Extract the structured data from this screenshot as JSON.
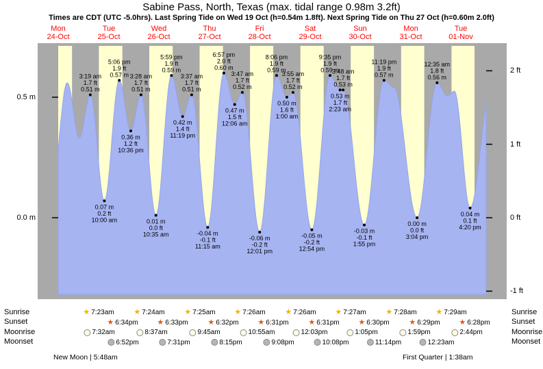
{
  "title": "Sabine Pass, North, Texas (max. tidal range 0.98m 3.2ft)",
  "subtitle": "Times are CDT (UTC -5.0hrs). Last Spring Tide on Wed 19 Oct (h=0.54m 1.8ft). Next Spring Tide on Thu 27 Oct (h=0.60m 2.0ft)",
  "colors": {
    "day_band": "#ffffcf",
    "night": "#a9a9a9",
    "tide_fill": "#a7b4f2",
    "tide_edge": "#93a5ee",
    "day_label": "#ff0000",
    "sunrise_icon": "#f0b400",
    "sunset_icon": "#e0581c",
    "moonrise_icon": "#fffbe0",
    "moonset_icon": "#b5b5b5",
    "text": "#000000"
  },
  "days": [
    {
      "name": "Mon",
      "date": "24-Oct"
    },
    {
      "name": "Tue",
      "date": "25-Oct"
    },
    {
      "name": "Wed",
      "date": "26-Oct"
    },
    {
      "name": "Thu",
      "date": "27-Oct"
    },
    {
      "name": "Fri",
      "date": "28-Oct"
    },
    {
      "name": "Sat",
      "date": "29-Oct"
    },
    {
      "name": "Sun",
      "date": "30-Oct"
    },
    {
      "name": "Mon",
      "date": "31-Oct"
    },
    {
      "name": "Tue",
      "date": "01-Nov"
    }
  ],
  "axis": {
    "left": [
      {
        "label": "0.5 m",
        "m": 0.5
      },
      {
        "label": "0.0 m",
        "m": 0
      }
    ],
    "right": [
      {
        "label": "2 ft",
        "m": 0.6096
      },
      {
        "label": "1 ft",
        "m": 0.3048
      },
      {
        "label": "0 ft",
        "m": 0
      },
      {
        "label": "-1 ft",
        "m": -0.3048
      }
    ]
  },
  "chart_data": {
    "type": "area",
    "series_name": "tide height",
    "x_range": "Mon 24-Oct midday to Wed 02-Nov 00:00",
    "ylim_m": [
      -0.32,
      0.71
    ],
    "grid": false,
    "start_day_sunset_est": "6:35 pm",
    "extremes": [
      {
        "day": 0,
        "time": "8:55 am",
        "type": "low",
        "m": "0.12",
        "labeled": false,
        "est": true
      },
      {
        "day": 0,
        "time": "4:18 pm",
        "type": "high",
        "m": "0.56",
        "labeled": false,
        "est": true
      },
      {
        "day": 0,
        "time": "10:05 pm",
        "type": "low",
        "m": "0.33",
        "labeled": false,
        "est": true
      },
      {
        "day": 1,
        "time": "3:19 am",
        "type": "high",
        "m": "0.51",
        "ft": "1.7",
        "labeled": true
      },
      {
        "day": 1,
        "time": "10:00 am",
        "type": "low",
        "m": "0.07",
        "ft": "0.2",
        "labeled": true
      },
      {
        "day": 1,
        "time": "5:06 pm",
        "type": "high",
        "m": "0.57",
        "ft": "1.9",
        "labeled": true
      },
      {
        "day": 1,
        "time": "10:36 pm",
        "type": "low",
        "m": "0.36",
        "ft": "1.2",
        "labeled": true
      },
      {
        "day": 2,
        "time": "3:28 am",
        "type": "high",
        "m": "0.51",
        "ft": "1.7",
        "labeled": true
      },
      {
        "day": 2,
        "time": "10:35 am",
        "type": "low",
        "m": "0.01",
        "ft": "0.0",
        "labeled": true
      },
      {
        "day": 2,
        "time": "5:59 pm",
        "type": "high",
        "m": "0.59",
        "ft": "1.9",
        "labeled": true
      },
      {
        "day": 2,
        "time": "11:19 pm",
        "type": "low",
        "m": "0.42",
        "ft": "1.4",
        "labeled": true
      },
      {
        "day": 3,
        "time": "3:37 am",
        "type": "high",
        "m": "0.51",
        "ft": "1.7",
        "labeled": true
      },
      {
        "day": 3,
        "time": "11:15 am",
        "type": "low",
        "m": "-0.04",
        "ft": "-0.1",
        "labeled": true
      },
      {
        "day": 3,
        "time": "6:57 pm",
        "type": "high",
        "m": "0.60",
        "ft": "2.0",
        "labeled": true
      },
      {
        "day": 4,
        "time": "12:06 am",
        "type": "low",
        "m": "0.47",
        "ft": "1.5",
        "labeled": true
      },
      {
        "day": 4,
        "time": "3:47 am",
        "type": "high",
        "m": "0.52",
        "ft": "1.7",
        "labeled": true
      },
      {
        "day": 4,
        "time": "12:01 pm",
        "type": "low",
        "m": "-0.06",
        "ft": "-0.2",
        "labeled": true
      },
      {
        "day": 4,
        "time": "8:06 pm",
        "type": "high",
        "m": "0.59",
        "ft": "1.9",
        "labeled": true
      },
      {
        "day": 5,
        "time": "1:00 am",
        "type": "low",
        "m": "0.50",
        "ft": "1.6",
        "labeled": true
      },
      {
        "day": 5,
        "time": "3:55 am",
        "type": "high",
        "m": "0.52",
        "ft": "1.7",
        "labeled": true
      },
      {
        "day": 5,
        "time": "12:54 pm",
        "type": "low",
        "m": "-0.05",
        "ft": "-0.2",
        "labeled": true
      },
      {
        "day": 5,
        "time": "9:35 pm",
        "type": "high",
        "m": "0.59",
        "ft": "1.9",
        "labeled": true
      },
      {
        "day": 6,
        "time": "2:23 am",
        "type": "low",
        "m": "0.53",
        "ft": "1.7",
        "labeled": true
      },
      {
        "day": 6,
        "time": "3:48 am",
        "type": "high",
        "m": "0.53",
        "ft": "1.7",
        "labeled": true
      },
      {
        "day": 6,
        "time": "1:55 pm",
        "type": "low",
        "m": "-0.03",
        "ft": "-0.1",
        "labeled": true
      },
      {
        "day": 6,
        "time": "11:19 pm",
        "type": "high",
        "m": "0.57",
        "ft": "1.9",
        "labeled": true
      },
      {
        "day": 7,
        "time": "4:00 am",
        "type": "high",
        "m": "0.54",
        "labeled": false,
        "est": true
      },
      {
        "day": 7,
        "time": "3:04 pm",
        "type": "low",
        "m": "0.00",
        "ft": "0.0",
        "labeled": true
      },
      {
        "day": 8,
        "time": "12:35 am",
        "type": "high",
        "m": "0.56",
        "ft": "1.8",
        "labeled": true
      },
      {
        "day": 8,
        "time": "5:30 am",
        "type": "low",
        "m": "0.505",
        "labeled": false,
        "est": true
      },
      {
        "day": 8,
        "time": "8:50 am",
        "type": "high",
        "m": "0.525",
        "labeled": false,
        "est": true
      },
      {
        "day": 8,
        "time": "4:20 pm",
        "type": "low",
        "m": "0.04",
        "ft": "0.1",
        "labeled": true
      },
      {
        "day": 9,
        "time": "2:30 am",
        "type": "high",
        "m": "0.55",
        "labeled": false,
        "est": true
      }
    ]
  },
  "astro": {
    "row_labels": [
      "Sunrise",
      "Sunset",
      "Moonrise",
      "Moonset"
    ],
    "sunrise": [
      {
        "day": 1,
        "time": "7:23am"
      },
      {
        "day": 2,
        "time": "7:24am"
      },
      {
        "day": 3,
        "time": "7:25am"
      },
      {
        "day": 4,
        "time": "7:26am"
      },
      {
        "day": 5,
        "time": "7:26am"
      },
      {
        "day": 6,
        "time": "7:27am"
      },
      {
        "day": 7,
        "time": "7:28am"
      },
      {
        "day": 8,
        "time": "7:29am"
      }
    ],
    "sunset": [
      {
        "day": 1,
        "time": "6:34pm"
      },
      {
        "day": 2,
        "time": "6:33pm"
      },
      {
        "day": 3,
        "time": "6:32pm"
      },
      {
        "day": 4,
        "time": "6:31pm"
      },
      {
        "day": 5,
        "time": "6:31pm"
      },
      {
        "day": 6,
        "time": "6:30pm"
      },
      {
        "day": 7,
        "time": "6:29pm"
      },
      {
        "day": 8,
        "time": "6:28pm"
      }
    ],
    "moonrise": [
      {
        "day": 1,
        "time": "7:32am"
      },
      {
        "day": 2,
        "time": "8:37am"
      },
      {
        "day": 3,
        "time": "9:45am"
      },
      {
        "day": 4,
        "time": "10:55am"
      },
      {
        "day": 5,
        "time": "12:03pm"
      },
      {
        "day": 6,
        "time": "1:05pm"
      },
      {
        "day": 7,
        "time": "1:59pm"
      },
      {
        "day": 8,
        "time": "2:44pm"
      }
    ],
    "moonset": [
      {
        "day": 1,
        "time": "6:52pm"
      },
      {
        "day": 2,
        "time": "7:31pm"
      },
      {
        "day": 3,
        "time": "8:15pm"
      },
      {
        "day": 4,
        "time": "9:08pm"
      },
      {
        "day": 5,
        "time": "10:08pm"
      },
      {
        "day": 6,
        "time": "11:14pm"
      },
      {
        "day": 8,
        "time": "12:23am"
      }
    ],
    "phases": [
      {
        "label": "New Moon | 5:48am"
      },
      {
        "label": "First Quarter | 1:38am"
      }
    ]
  }
}
